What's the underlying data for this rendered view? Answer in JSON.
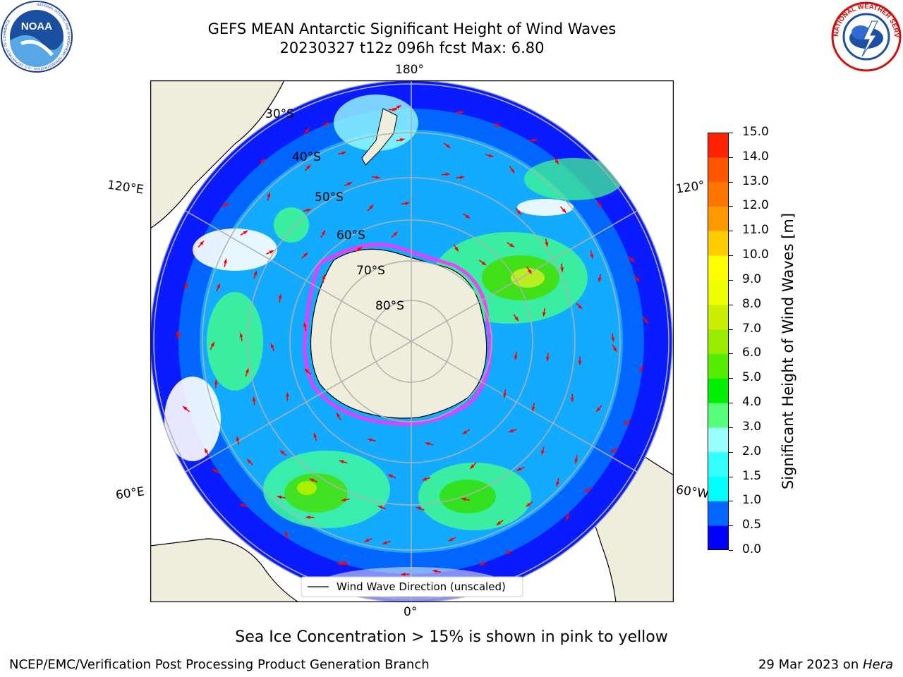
{
  "header": {
    "title_line1": "GEFS MEAN Antarctic Significant Height of Wind Waves",
    "title_line2": "20230327 t12z 096h fcst   Max: 6.80"
  },
  "logos": {
    "left": {
      "name": "noaa-logo",
      "text": "NOAA",
      "ring_text": "NATIONAL OCEANIC AND ATMOSPHERIC ADMINISTRATION · U.S. DEPARTMENT OF COMMERCE"
    },
    "right": {
      "name": "nws-logo",
      "ring_text": "NATIONAL WEATHER SERVICE"
    }
  },
  "map": {
    "projection": "south-polar-stereographic",
    "longitude_labels": {
      "top": "180°",
      "bottom": "0°",
      "left_upper": "120°E",
      "left_lower": "60°E",
      "right_upper": "120°",
      "right_lower": "60°W"
    },
    "latitude_labels": [
      "30°S",
      "40°S",
      "50°S",
      "60°S",
      "70°S",
      "80°S"
    ],
    "legend": "Wind Wave Direction (unscaled)",
    "colors": {
      "land": "#efeedd",
      "ocean_low": "#0000ff",
      "arrow": "#ff0000",
      "ice": "#ff33ff",
      "grid": "#b0b0b0"
    }
  },
  "colorbar": {
    "label": "Significant Height of Wind Waves [m]",
    "ticks": [
      "0.0",
      "0.5",
      "1.0",
      "1.5",
      "2.0",
      "3.0",
      "4.0",
      "5.0",
      "6.0",
      "7.0",
      "8.0",
      "9.0",
      "10.0",
      "11.0",
      "12.0",
      "13.0",
      "14.0",
      "15.0"
    ],
    "colors": [
      "#0000ff",
      "#0066ff",
      "#00ffff",
      "#33ffff",
      "#99ffff",
      "#55ff77",
      "#00ee00",
      "#55ee00",
      "#99ee00",
      "#ccee00",
      "#eeff00",
      "#ffff00",
      "#ffcc00",
      "#ff9900",
      "#ff7700",
      "#ff5500",
      "#ff2200"
    ]
  },
  "chart_data": {
    "type": "heatmap",
    "title": "GEFS MEAN Antarctic Significant Height of Wind Waves",
    "subtitle": "20230327 t12z 096h fcst   Max: 6.80",
    "colorbar_label": "Significant Height of Wind Waves [m]",
    "colorbar_range": [
      0.0,
      15.0
    ],
    "max_value": 6.8
  },
  "notes": {
    "ice": "Sea Ice Concentration > 15% is shown in pink to yellow"
  },
  "footer": {
    "left": "NCEP/EMC/Verification Post Processing Product Generation Branch",
    "right_prefix": "29 Mar 2023 on ",
    "right_system": "Hera"
  }
}
